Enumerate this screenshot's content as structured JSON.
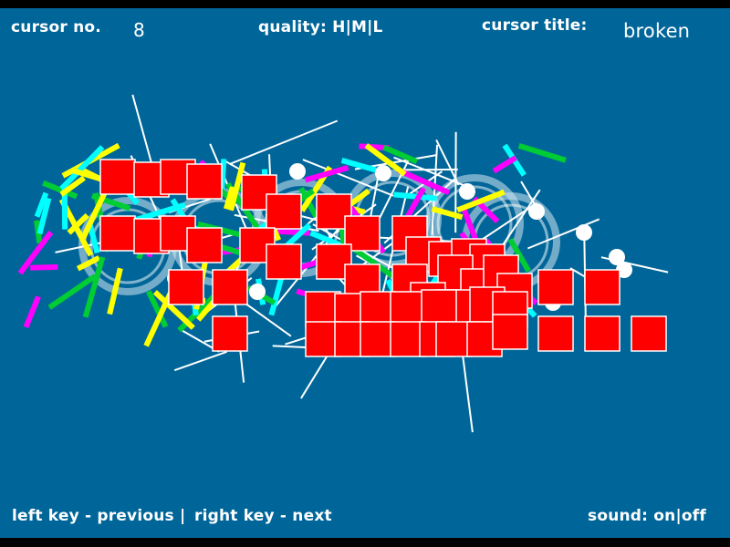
{
  "header": {
    "cursor_no_label": "cursor no.",
    "cursor_no_value": "8",
    "quality_label": "quality:",
    "quality_options": [
      "H",
      "M",
      "L"
    ],
    "cursor_title_label": "cursor title:",
    "cursor_title_value": "broken"
  },
  "footer": {
    "prev_hint": "left key - previous",
    "next_hint": "right key - next",
    "sound_label": "sound:",
    "sound_options": [
      "on",
      "off"
    ]
  },
  "colors": {
    "background": "#006699",
    "square": "#ff0000",
    "line_colors": [
      "#ffff00",
      "#00cc33",
      "#00ffff",
      "#ff00ff",
      "#ffffff"
    ]
  }
}
